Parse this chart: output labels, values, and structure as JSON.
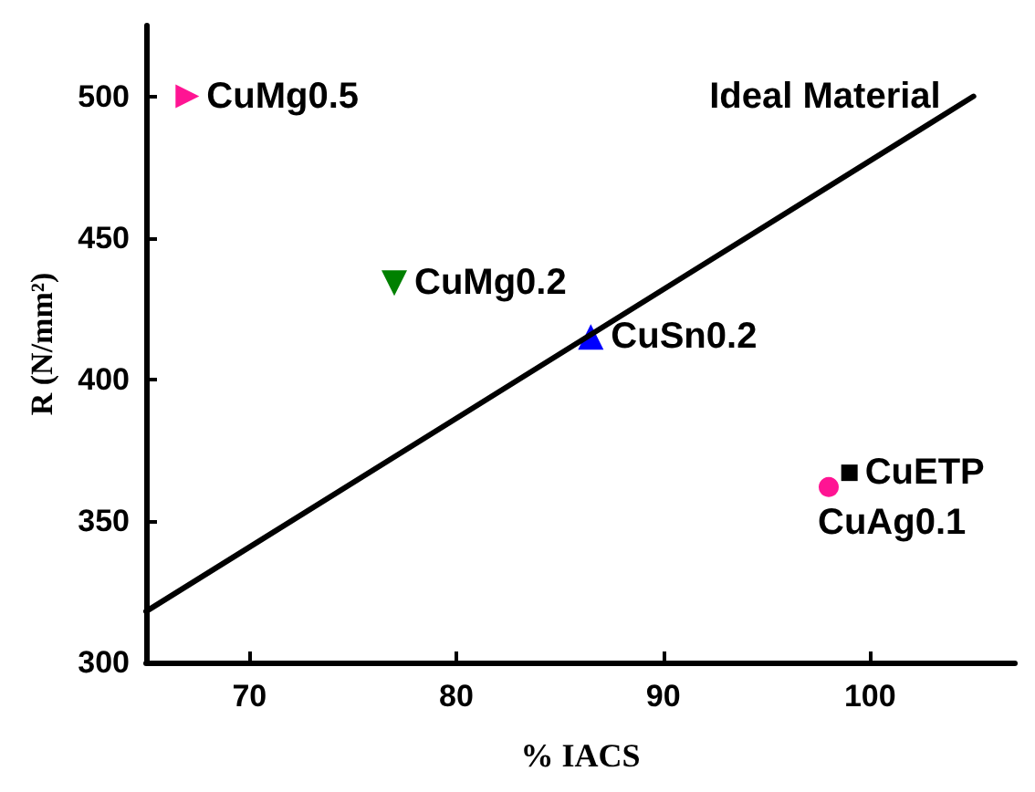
{
  "chart_data": {
    "type": "scatter",
    "xlabel": "% IACS",
    "ylabel": "R (N/mm²)",
    "xlim": [
      65,
      107
    ],
    "xticks": [
      70,
      80,
      90,
      100
    ],
    "ylim": [
      300,
      525
    ],
    "yticks": [
      300,
      350,
      400,
      450,
      500
    ],
    "series": [
      {
        "name": "CuMg0.5",
        "color": "#ff1493",
        "marker": "triangle-right",
        "x": [
          67
        ],
        "values": [
          500
        ]
      },
      {
        "name": "CuMg0.2",
        "color": "#008000",
        "marker": "triangle-down",
        "x": [
          77
        ],
        "values": [
          434
        ]
      },
      {
        "name": "CuSn0.2",
        "color": "#0000ff",
        "marker": "triangle",
        "x": [
          86.5
        ],
        "values": [
          415
        ]
      },
      {
        "name": "CuETP",
        "color": "#000000",
        "marker": "square",
        "x": [
          99
        ],
        "values": [
          367
        ]
      },
      {
        "name": "CuAg0.1",
        "color": "#ff1493",
        "marker": "circle",
        "x": [
          98
        ],
        "values": [
          362
        ]
      },
      {
        "name": "Ideal Material",
        "type": "line",
        "color": "#000000",
        "marker": "none",
        "line_style": "solid",
        "x": [
          65,
          105
        ],
        "values": [
          318,
          500
        ]
      }
    ]
  }
}
